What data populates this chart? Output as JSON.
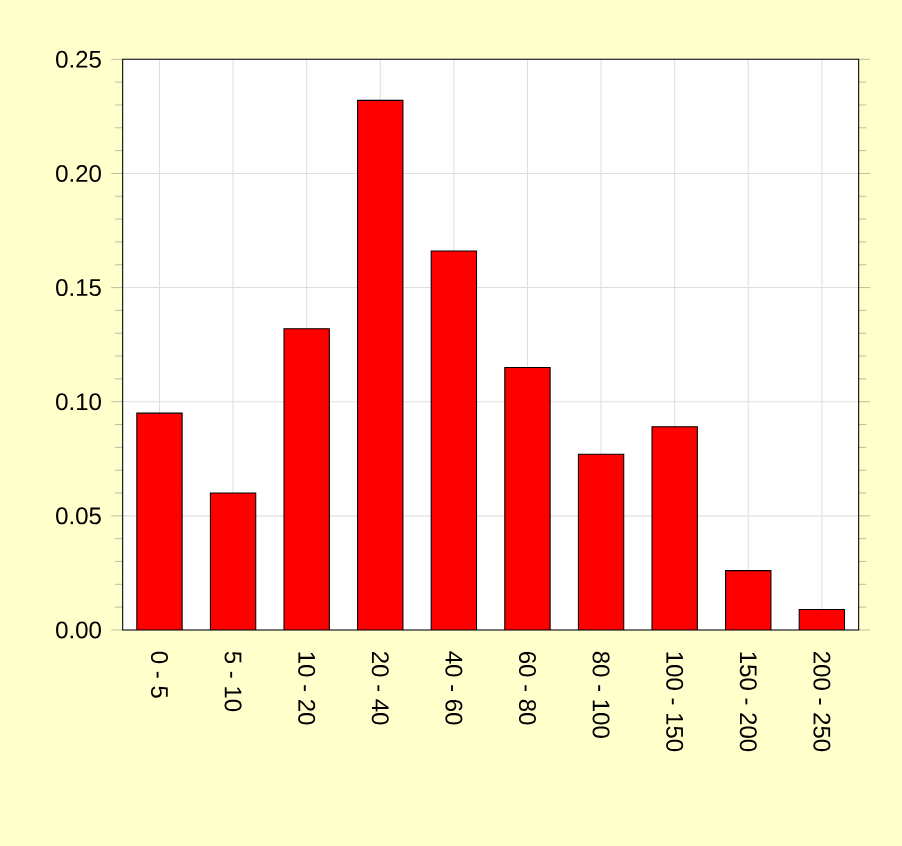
{
  "chart_data": {
    "type": "bar",
    "categories": [
      "0 - 5",
      "5 - 10",
      "10 - 20",
      "20 - 40",
      "40 - 60",
      "60 - 80",
      "80 - 100",
      "100 - 150",
      "150 - 200",
      "200 - 250"
    ],
    "values": [
      0.095,
      0.06,
      0.132,
      0.232,
      0.166,
      0.115,
      0.077,
      0.089,
      0.026,
      0.009
    ],
    "color": "#ff0000",
    "ylim": [
      0,
      0.25
    ],
    "yticks": [
      {
        "value": 0,
        "label": "0.00"
      },
      {
        "value": 0.05,
        "label": "0.05"
      },
      {
        "value": 0.1,
        "label": "0.10"
      },
      {
        "value": 0.15,
        "label": "0.15"
      },
      {
        "value": 0.2,
        "label": "0.20"
      },
      {
        "value": 0.25,
        "label": "0.25"
      }
    ],
    "grid": true
  }
}
